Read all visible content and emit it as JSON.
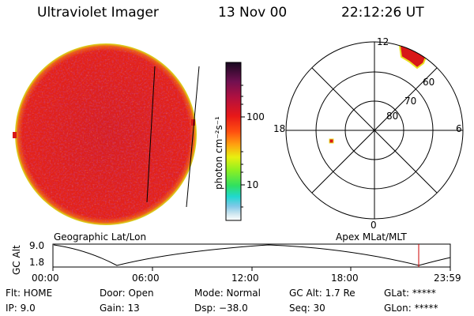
{
  "header": {
    "title": "Ultraviolet Imager",
    "date": "13 Nov 00",
    "time": "22:12:26 UT"
  },
  "colorbar": {
    "unit_label": "photon cm⁻²s⁻¹",
    "ticks": [
      "100",
      "10"
    ]
  },
  "polar": {
    "mlt_labels": {
      "top": "12",
      "left": "18",
      "right": "6",
      "bottom": "0"
    },
    "lat_labels": [
      "60",
      "70",
      "80"
    ]
  },
  "panel_labels": {
    "left": "Geographic Lat/Lon",
    "right": "Apex MLat/MLT"
  },
  "altitude_plot": {
    "ylabel": "GC Alt",
    "ymax": "9.0",
    "ymin": "1.8",
    "x_ticks": [
      "00:00",
      "06:00",
      "12:00",
      "18:00",
      "23:59"
    ]
  },
  "info": {
    "row1": [
      "Flt: HOME",
      "Door: Open",
      "Mode: Normal",
      "GC Alt: 1.7 Re",
      "GLat: *****"
    ],
    "row2": [
      "IP:  9.0",
      "Gain: 13",
      "Dsp:  −38.0",
      "Seq: 30",
      "GLon: *****"
    ]
  },
  "colors": {
    "disk": "#e8201a",
    "disk_edge": "#d8e020",
    "polar_spot": "#d81818",
    "marker_line": "#cc0000"
  }
}
